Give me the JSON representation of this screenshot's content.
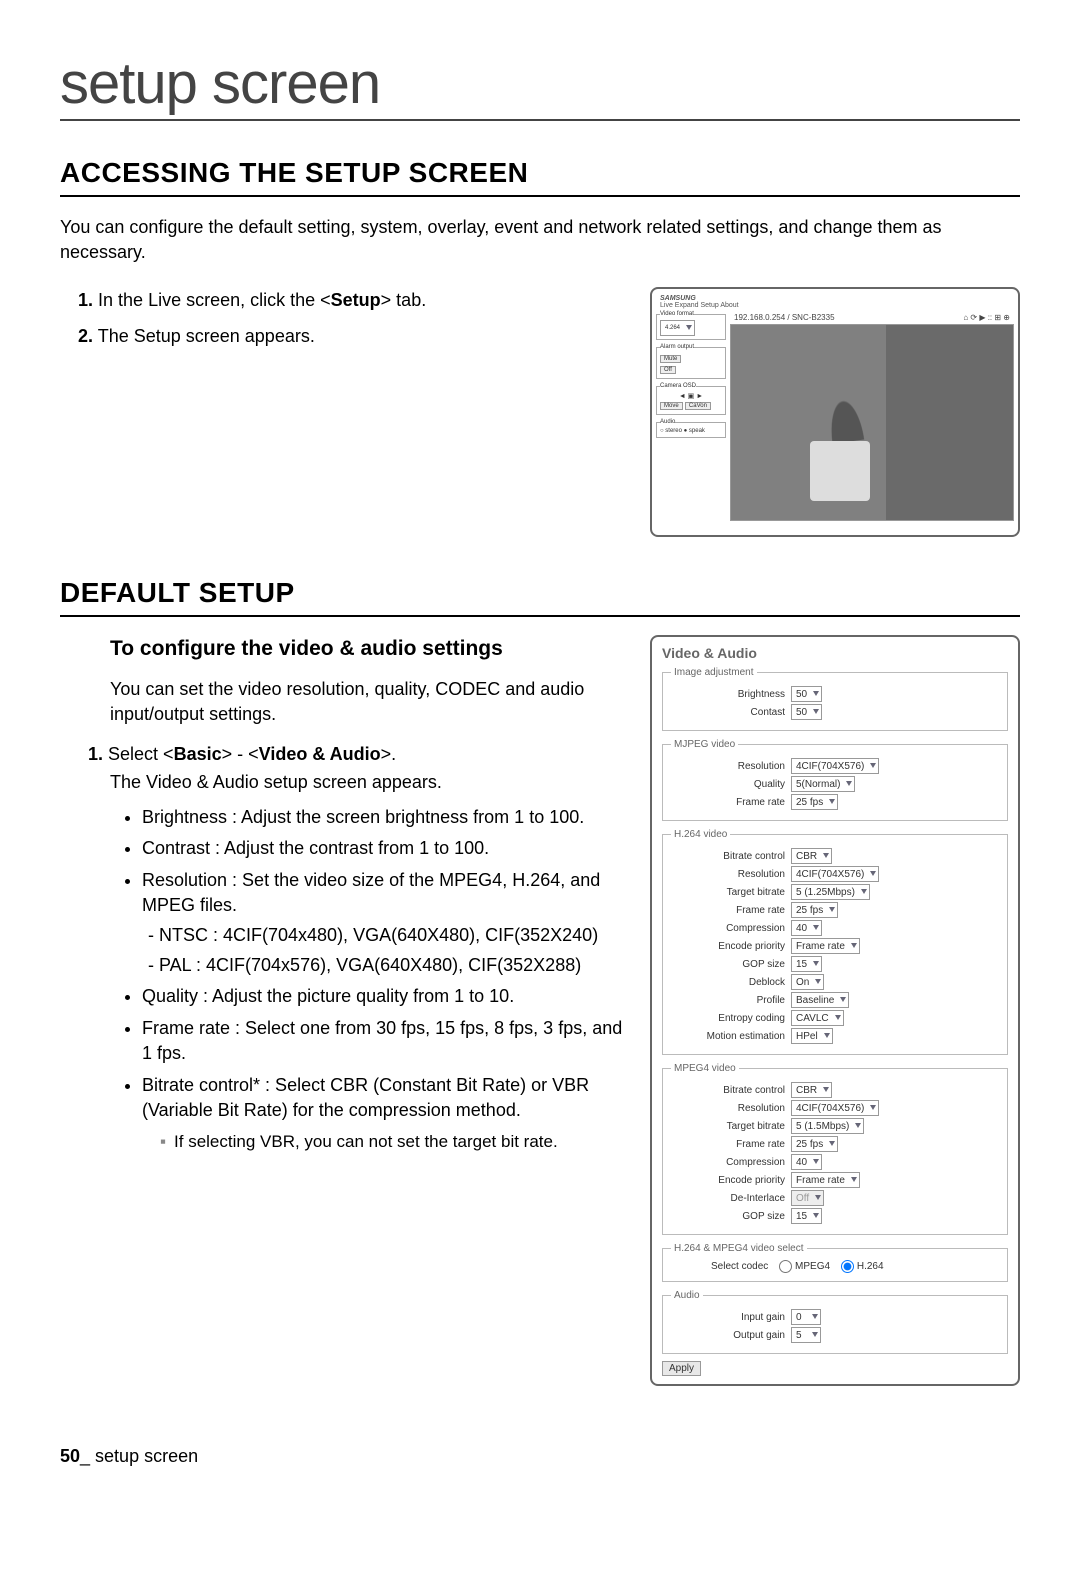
{
  "page_title": "setup screen",
  "section1": {
    "heading": "ACCESSING THE SETUP SCREEN",
    "intro": "You can configure the default setting, system, overlay, event and network related settings, and change them as necessary.",
    "steps": [
      {
        "num": "1.",
        "pre": "In the Live screen, click the <",
        "bold": "Setup",
        "post": "> tab."
      },
      {
        "num": "2.",
        "pre": "The Setup screen appears.",
        "bold": "",
        "post": ""
      }
    ],
    "shot": {
      "brand": "SAMSUNG",
      "tabs": "Live  Expand  Setup  About",
      "ip": "192.168.0.254 / SNC-B2335",
      "icons": "⌂ ⟳ ▶ :: ⊞ ⊕",
      "side_groups": [
        "Video format",
        "Alarm output",
        "Camera OSD",
        "Audio"
      ],
      "btns": [
        "Mute",
        "Off",
        "Move",
        "CaVon"
      ]
    }
  },
  "section2": {
    "heading": "DEFAULT SETUP",
    "sub": "To configure the video & audio settings",
    "sub_intro": "You can set the video resolution, quality, CODEC and audio input/output settings.",
    "step1": {
      "num": "1.",
      "pre": "Select <",
      "b1": "Basic",
      "mid": "> - <",
      "b2": "Video & Audio",
      "post": ">."
    },
    "step1_line2": "The Video & Audio setup screen appears.",
    "bullets": [
      "Brightness : Adjust the screen brightness from 1 to 100.",
      "Contrast : Adjust the contrast from 1 to 100.",
      "Resolution : Set the video size of the MPEG4, H.264, and MPEG files.",
      "Quality : Adjust the picture quality from 1 to 10.",
      "Frame rate : Select one from 30 fps, 15 fps, 8 fps, 3 fps, and 1 fps.",
      "Bitrate control* : Select CBR (Constant Bit Rate) or VBR (Variable Bit Rate) for the compression method."
    ],
    "res_dashes": [
      "NTSC : 4CIF(704x480), VGA(640X480), CIF(352X240)",
      "PAL : 4CIF(704x576), VGA(640X480), CIF(352X288)"
    ],
    "vbr_note": "If selecting VBR, you can not set the target bit rate."
  },
  "panel": {
    "title": "Video & Audio",
    "groups": {
      "image": {
        "legend": "Image adjustment",
        "rows": [
          {
            "label": "Brightness",
            "value": "50"
          },
          {
            "label": "Contast",
            "value": "50"
          }
        ]
      },
      "mjpeg": {
        "legend": "MJPEG video",
        "rows": [
          {
            "label": "Resolution",
            "value": "4CIF(704X576)"
          },
          {
            "label": "Quality",
            "value": "5(Normal)"
          },
          {
            "label": "Frame rate",
            "value": "25 fps"
          }
        ]
      },
      "h264": {
        "legend": "H.264 video",
        "rows": [
          {
            "label": "Bitrate control",
            "value": "CBR"
          },
          {
            "label": "Resolution",
            "value": "4CIF(704X576)"
          },
          {
            "label": "Target bitrate",
            "value": "5 (1.25Mbps)"
          },
          {
            "label": "Frame rate",
            "value": "25 fps"
          },
          {
            "label": "Compression",
            "value": "40"
          },
          {
            "label": "Encode priority",
            "value": "Frame rate"
          },
          {
            "label": "GOP size",
            "value": "15"
          },
          {
            "label": "Deblock",
            "value": "On"
          },
          {
            "label": "Profile",
            "value": "Baseline"
          },
          {
            "label": "Entropy coding",
            "value": "CAVLC"
          },
          {
            "label": "Motion estimation",
            "value": "HPel"
          }
        ]
      },
      "mpeg4": {
        "legend": "MPEG4 video",
        "rows": [
          {
            "label": "Bitrate control",
            "value": "CBR"
          },
          {
            "label": "Resolution",
            "value": "4CIF(704X576)"
          },
          {
            "label": "Target bitrate",
            "value": "5 (1.5Mbps)"
          },
          {
            "label": "Frame rate",
            "value": "25 fps"
          },
          {
            "label": "Compression",
            "value": "40"
          },
          {
            "label": "Encode priority",
            "value": "Frame rate"
          },
          {
            "label": "De-Interlace",
            "value": "Off",
            "disabled": true
          },
          {
            "label": "GOP size",
            "value": "15"
          }
        ]
      },
      "select": {
        "legend": "H.264 & MPEG4 video select",
        "label": "Select codec",
        "opt1": "MPEG4",
        "opt2": "H.264"
      },
      "audio": {
        "legend": "Audio",
        "rows": [
          {
            "label": "Input gain",
            "value": "0"
          },
          {
            "label": "Output gain",
            "value": "5"
          }
        ]
      }
    },
    "apply": "Apply"
  },
  "footer": {
    "page": "50",
    "label": "_ setup screen"
  }
}
